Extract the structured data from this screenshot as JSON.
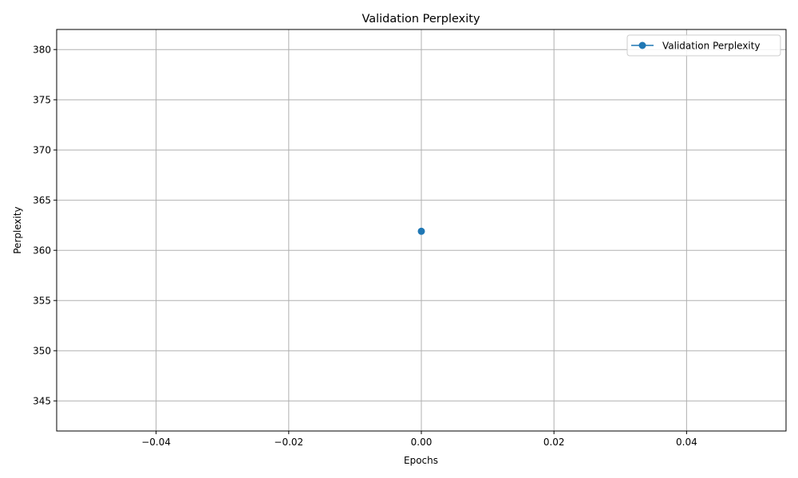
{
  "chart_data": {
    "type": "line",
    "title": "Validation Perplexity",
    "xlabel": "Epochs",
    "ylabel": "Perplexity",
    "xlim": [
      -0.055,
      0.055
    ],
    "ylim": [
      342.0,
      382.0
    ],
    "xticks": [
      -0.04,
      -0.02,
      0.0,
      0.02,
      0.04
    ],
    "xtick_labels": [
      "−0.04",
      "−0.02",
      "0.00",
      "0.02",
      "0.04"
    ],
    "yticks": [
      345,
      350,
      355,
      360,
      365,
      370,
      375,
      380
    ],
    "ytick_labels": [
      "345",
      "350",
      "355",
      "360",
      "365",
      "370",
      "375",
      "380"
    ],
    "grid": true,
    "legend_position": "top-right",
    "series": [
      {
        "name": "Validation Perplexity",
        "color": "#1f77b4",
        "marker": "circle",
        "x": [
          0
        ],
        "y": [
          361.9
        ]
      }
    ]
  }
}
